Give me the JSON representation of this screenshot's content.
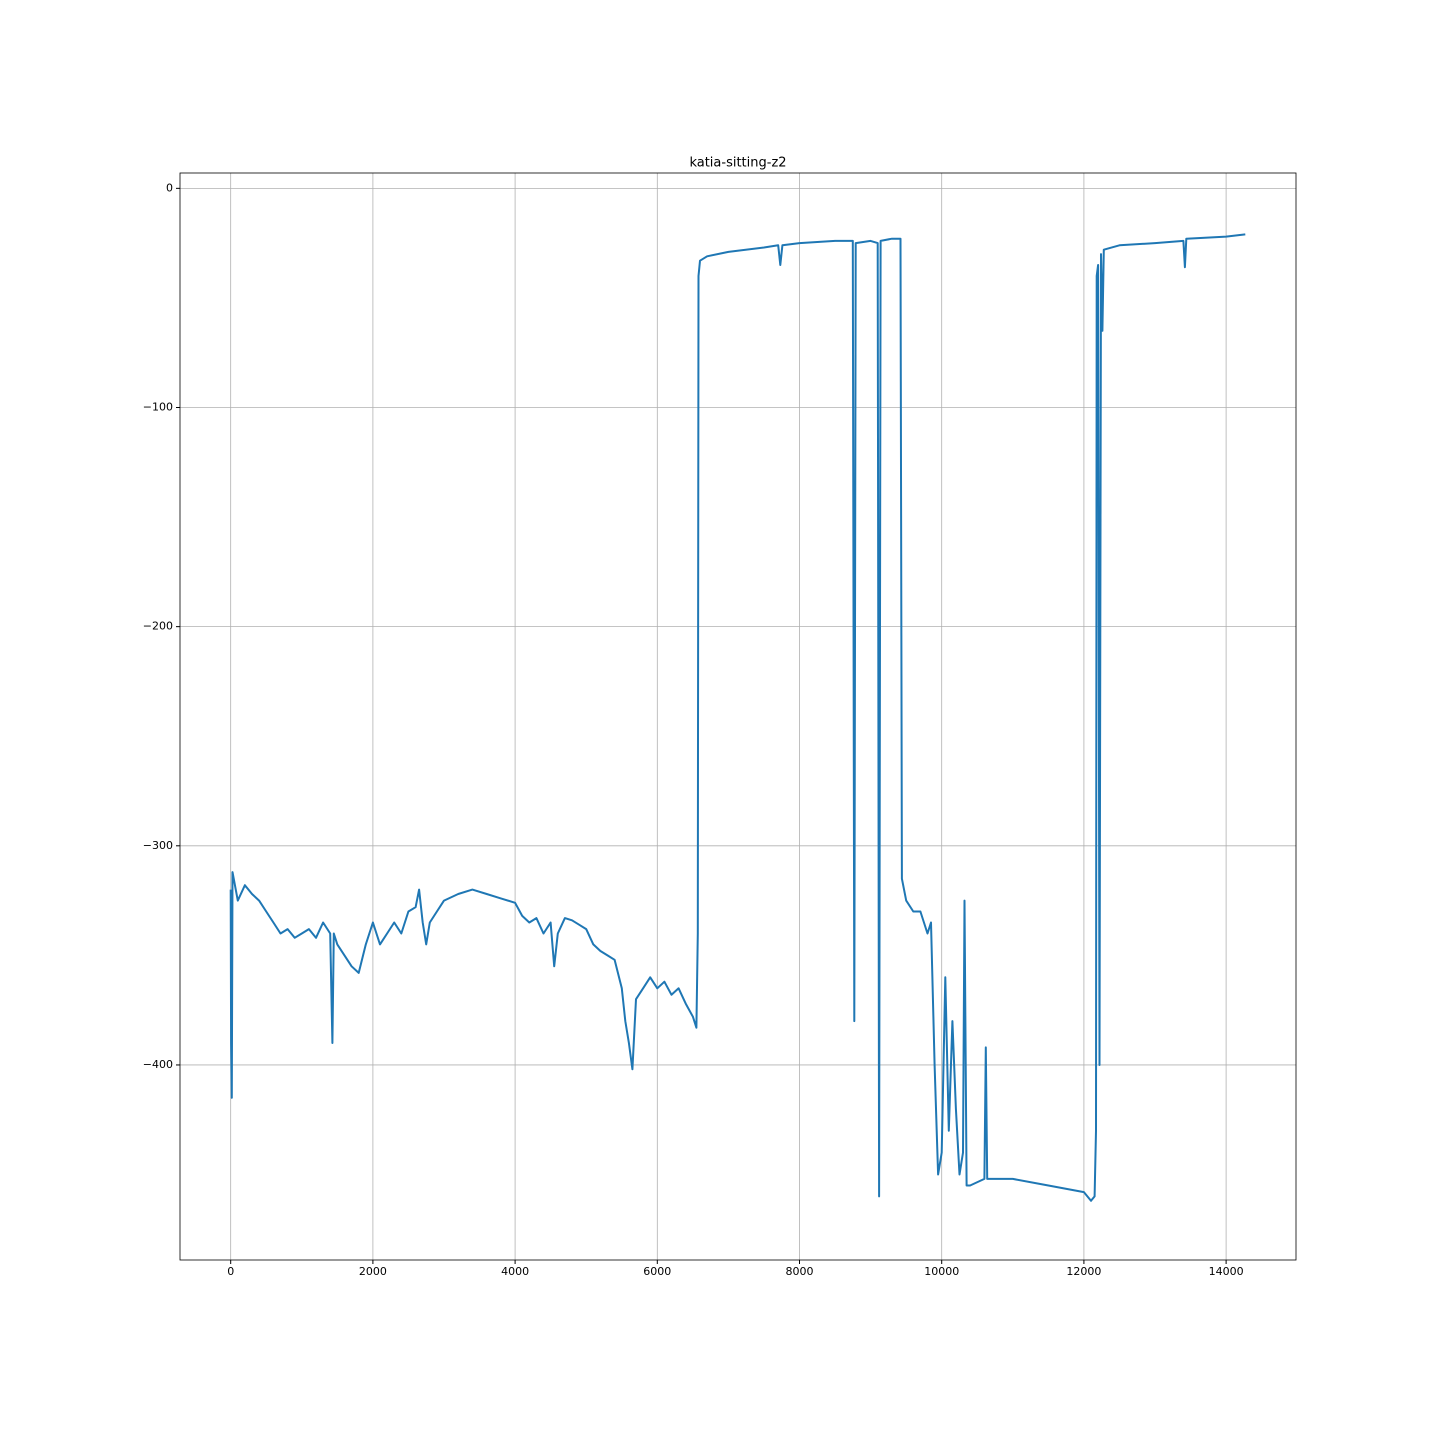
{
  "chart_data": {
    "type": "line",
    "title": "katia-sitting-z2",
    "x": [
      0,
      5,
      15,
      25,
      100,
      200,
      300,
      400,
      500,
      600,
      700,
      800,
      900,
      1000,
      1100,
      1200,
      1300,
      1400,
      1430,
      1450,
      1500,
      1600,
      1700,
      1800,
      1900,
      2000,
      2100,
      2200,
      2300,
      2400,
      2500,
      2600,
      2650,
      2700,
      2750,
      2800,
      2900,
      3000,
      3200,
      3400,
      3600,
      3800,
      4000,
      4100,
      4200,
      4300,
      4400,
      4500,
      4550,
      4600,
      4700,
      4800,
      4900,
      5000,
      5100,
      5200,
      5300,
      5400,
      5500,
      5550,
      5600,
      5650,
      5700,
      5800,
      5900,
      6000,
      6100,
      6200,
      6300,
      6400,
      6500,
      6550,
      6570,
      6580,
      6600,
      6700,
      7000,
      7500,
      7700,
      7730,
      7760,
      8000,
      8500,
      8750,
      8770,
      8790,
      9000,
      9100,
      9120,
      9140,
      9300,
      9420,
      9440,
      9500,
      9600,
      9700,
      9800,
      9850,
      9900,
      9950,
      10000,
      10050,
      10100,
      10150,
      10200,
      10250,
      10300,
      10320,
      10350,
      10400,
      10600,
      10620,
      10640,
      11000,
      11500,
      12000,
      12100,
      12150,
      12170,
      12180,
      12200,
      12220,
      12240,
      12260,
      12280,
      12500,
      13000,
      13400,
      13420,
      13440,
      14000,
      14270
    ],
    "series": [
      {
        "color": "#1f77b4",
        "values": [
          -320,
          -390,
          -415,
          -312,
          -325,
          -318,
          -322,
          -325,
          -330,
          -335,
          -340,
          -338,
          -342,
          -340,
          -338,
          -342,
          -335,
          -340,
          -390,
          -340,
          -345,
          -350,
          -355,
          -358,
          -345,
          -335,
          -345,
          -340,
          -335,
          -340,
          -330,
          -328,
          -320,
          -335,
          -345,
          -335,
          -330,
          -325,
          -322,
          -320,
          -322,
          -324,
          -326,
          -332,
          -335,
          -333,
          -340,
          -335,
          -355,
          -340,
          -333,
          -334,
          -336,
          -338,
          -345,
          -348,
          -350,
          -352,
          -365,
          -380,
          -390,
          -402,
          -370,
          -365,
          -360,
          -365,
          -362,
          -368,
          -365,
          -372,
          -378,
          -383,
          -340,
          -40,
          -33,
          -31,
          -29,
          -27,
          -26,
          -35,
          -26,
          -25,
          -24,
          -24,
          -380,
          -25,
          -24,
          -25,
          -460,
          -24,
          -23,
          -23,
          -315,
          -325,
          -330,
          -330,
          -340,
          -335,
          -400,
          -450,
          -440,
          -360,
          -430,
          -380,
          -420,
          -450,
          -440,
          -325,
          -455,
          -455,
          -452,
          -392,
          -452,
          -452,
          -455,
          -458,
          -462,
          -460,
          -430,
          -40,
          -35,
          -400,
          -30,
          -65,
          -28,
          -26,
          -25,
          -24,
          -36,
          -23,
          -22,
          -21
        ]
      }
    ],
    "xlim": [
      -713,
      14983
    ],
    "ylim": [
      -489,
      7
    ],
    "xticks": [
      0,
      2000,
      4000,
      6000,
      8000,
      10000,
      12000,
      14000
    ],
    "yticks": [
      0,
      {
        "value": -100,
        "label": "−100"
      },
      {
        "value": -200,
        "label": "−200"
      },
      {
        "value": -300,
        "label": "−300"
      },
      {
        "value": -400,
        "label": "−400"
      }
    ],
    "grid": true
  }
}
